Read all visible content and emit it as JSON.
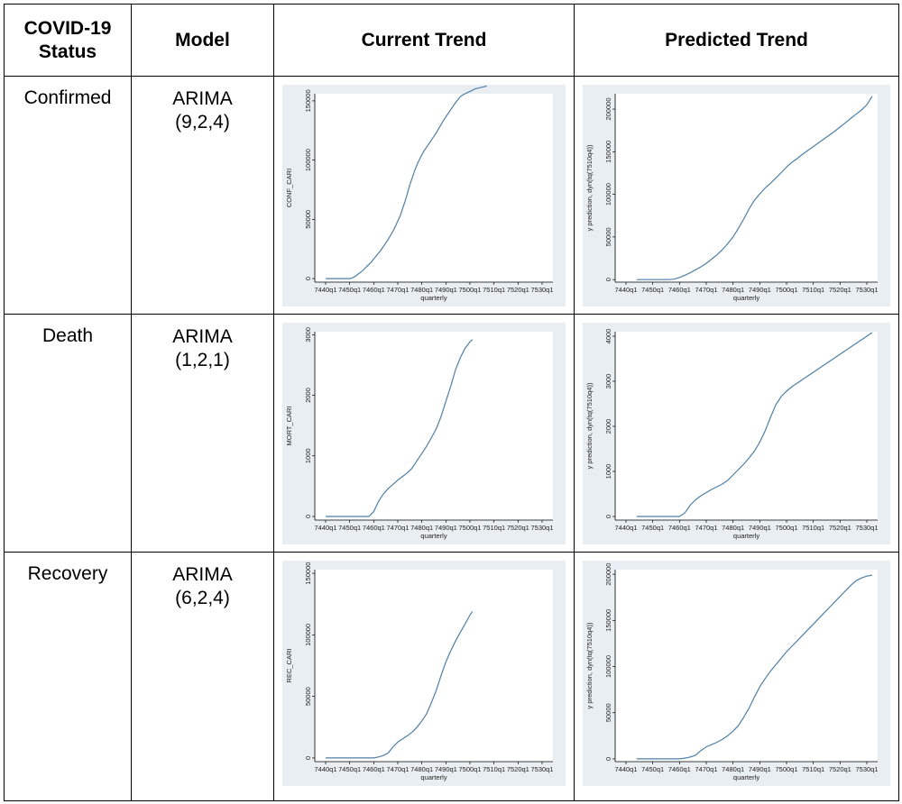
{
  "table": {
    "headers": [
      "COVID-19 Status",
      "Model",
      "Current Trend",
      "Predicted Trend"
    ],
    "header_status_line1": "COVID-19",
    "header_status_line2": "Status",
    "rows": [
      {
        "status": "Confirmed",
        "model_line1": "ARIMA",
        "model_line2": "(9,2,4)"
      },
      {
        "status": "Death",
        "model_line1": "ARIMA",
        "model_line2": "(1,2,1)"
      },
      {
        "status": "Recovery",
        "model_line1": "ARIMA",
        "model_line2": "(6,2,4)"
      }
    ]
  },
  "colors": {
    "plot_background": "#e8eef2",
    "line": "#4f7fa6",
    "axis": "#000000"
  },
  "chart_data": [
    {
      "type": "line",
      "ylabel": "CONF_CARI",
      "xlabel": "quarterly",
      "categories": [
        "7440q1",
        "7450q1",
        "7460q1",
        "7470q1",
        "7480q1",
        "7490q1",
        "7500q1",
        "7510q1",
        "7520q1",
        "7530q1"
      ],
      "yticks": [
        0,
        50000,
        100000,
        150000
      ],
      "ylim": [
        -3000,
        156000
      ],
      "x": [
        0,
        0.3,
        0.55,
        0.65,
        0.75,
        0.85,
        0.95,
        1.0,
        1.1,
        1.2,
        1.3,
        1.4,
        1.5,
        1.6,
        1.7,
        1.8,
        1.9,
        2.0,
        2.1,
        2.2,
        2.3,
        2.4,
        2.5,
        2.6,
        2.7,
        2.8,
        2.9,
        3.0,
        3.1,
        3.2,
        3.3,
        3.4,
        3.5,
        3.6,
        3.7,
        3.8,
        3.9,
        4.0,
        4.1,
        4.2,
        4.3,
        4.4,
        4.5,
        4.6,
        4.7,
        4.8,
        4.9,
        5.0,
        5.1,
        5.2,
        5.3,
        5.4,
        5.5,
        5.6,
        5.7,
        5.8,
        5.9,
        6.0,
        6.1,
        6.2,
        6.3,
        6.4,
        6.5,
        6.6,
        6.7
      ],
      "y": [
        0,
        0,
        0,
        0,
        0,
        0,
        0,
        0,
        500,
        1500,
        3000,
        4500,
        6000,
        8000,
        10000,
        12000,
        14000,
        16500,
        19000,
        21500,
        24000,
        27000,
        30000,
        33000,
        36500,
        40000,
        44000,
        48500,
        53000,
        59000,
        65000,
        72000,
        79000,
        85000,
        91000,
        96000,
        100500,
        104500,
        108000,
        111000,
        114000,
        117000,
        120000,
        123000,
        126500,
        130000,
        133500,
        136500,
        139500,
        142500,
        145500,
        148500,
        151000,
        153500,
        155000,
        156000,
        157000,
        158000,
        159000,
        160000,
        160500,
        161000,
        161500,
        162000,
        162500
      ]
    },
    {
      "type": "line",
      "ylabel": "y prediction, dyn(tq(7510q4))",
      "xlabel": "quarterly",
      "categories": [
        "7440q1",
        "7450q1",
        "7460q1",
        "7470q1",
        "7480q1",
        "7490q1",
        "7500q1",
        "7510q1",
        "7520q1",
        "7530q1"
      ],
      "yticks": [
        0,
        50000,
        100000,
        150000,
        200000
      ],
      "ylim": [
        -3000,
        218000
      ],
      "x": [
        0.4,
        0.8,
        1.2,
        1.4,
        1.6,
        1.8,
        2.0,
        2.2,
        2.4,
        2.6,
        2.8,
        3.0,
        3.2,
        3.4,
        3.6,
        3.8,
        4.0,
        4.2,
        4.4,
        4.6,
        4.8,
        5.0,
        5.2,
        5.4,
        5.6,
        5.8,
        6.0,
        6.2,
        6.4,
        6.6,
        6.8,
        7.0,
        7.2,
        7.4,
        7.6,
        7.8,
        8.0,
        8.2,
        8.4,
        8.6,
        8.8,
        9.0,
        9.2
      ],
      "y": [
        0,
        0,
        0,
        0,
        0,
        500,
        2500,
        5000,
        8000,
        11500,
        15000,
        19000,
        24000,
        29000,
        35000,
        42000,
        50000,
        60000,
        71000,
        83000,
        93000,
        100500,
        107500,
        113000,
        119000,
        125500,
        132000,
        137500,
        142000,
        147000,
        151500,
        156000,
        160500,
        165000,
        169500,
        174000,
        179000,
        184000,
        189000,
        194000,
        199000,
        205000,
        215000
      ]
    },
    {
      "type": "line",
      "ylabel": "MORT_CARI",
      "xlabel": "quarterly",
      "categories": [
        "7440q1",
        "7450q1",
        "7460q1",
        "7470q1",
        "7480q1",
        "7490q1",
        "7500q1",
        "7510q1",
        "7520q1",
        "7530q1"
      ],
      "yticks": [
        0,
        1000,
        2000,
        3000
      ],
      "ylim": [
        -60,
        3050
      ],
      "x": [
        0,
        0.5,
        1.0,
        1.5,
        1.8,
        2.0,
        2.2,
        2.4,
        2.6,
        2.8,
        3.0,
        3.2,
        3.4,
        3.6,
        3.8,
        4.0,
        4.2,
        4.4,
        4.6,
        4.8,
        5.0,
        5.2,
        5.4,
        5.6,
        5.8,
        6.0,
        6.1
      ],
      "y": [
        0,
        0,
        0,
        0,
        0,
        80,
        250,
        370,
        460,
        530,
        600,
        660,
        720,
        800,
        920,
        1040,
        1160,
        1300,
        1450,
        1650,
        1900,
        2150,
        2420,
        2620,
        2780,
        2880,
        2920
      ]
    },
    {
      "type": "line",
      "ylabel": "y prediction, dyn(tq(7510q4))",
      "xlabel": "quarterly",
      "categories": [
        "7440q1",
        "7450q1",
        "7460q1",
        "7470q1",
        "7480q1",
        "7490q1",
        "7500q1",
        "7510q1",
        "7520q1",
        "7530q1"
      ],
      "yticks": [
        0,
        1000,
        2000,
        3000,
        4000
      ],
      "ylim": [
        -80,
        4100
      ],
      "x": [
        0.4,
        0.8,
        1.2,
        1.6,
        2.0,
        2.2,
        2.4,
        2.6,
        2.8,
        3.0,
        3.2,
        3.4,
        3.6,
        3.8,
        4.0,
        4.2,
        4.4,
        4.6,
        4.8,
        5.0,
        5.2,
        5.4,
        5.6,
        5.8,
        6.0,
        6.2,
        6.4,
        6.6,
        6.8,
        7.0,
        7.2,
        7.4,
        7.6,
        7.8,
        8.0,
        8.2,
        8.4,
        8.6,
        8.8,
        9.0,
        9.2
      ],
      "y": [
        0,
        0,
        0,
        0,
        0,
        80,
        250,
        370,
        460,
        530,
        600,
        660,
        720,
        800,
        920,
        1040,
        1160,
        1300,
        1450,
        1650,
        1900,
        2200,
        2480,
        2660,
        2780,
        2880,
        2960,
        3040,
        3120,
        3200,
        3280,
        3360,
        3440,
        3520,
        3600,
        3680,
        3760,
        3840,
        3920,
        4000,
        4080
      ]
    },
    {
      "type": "line",
      "ylabel": "REC_CARI",
      "xlabel": "quarterly",
      "categories": [
        "7440q1",
        "7450q1",
        "7460q1",
        "7470q1",
        "7480q1",
        "7490q1",
        "7500q1",
        "7510q1",
        "7520q1",
        "7530q1"
      ],
      "yticks": [
        0,
        50000,
        100000,
        150000
      ],
      "ylim": [
        -3000,
        153000
      ],
      "x": [
        0,
        0.5,
        1.0,
        1.5,
        2.0,
        2.2,
        2.4,
        2.6,
        2.8,
        3.0,
        3.2,
        3.4,
        3.6,
        3.8,
        4.0,
        4.2,
        4.4,
        4.6,
        4.8,
        5.0,
        5.2,
        5.4,
        5.6,
        5.8,
        6.0,
        6.1
      ],
      "y": [
        0,
        0,
        0,
        0,
        0,
        800,
        2000,
        4000,
        9000,
        13000,
        15500,
        18000,
        21000,
        25000,
        30000,
        36000,
        45000,
        55000,
        67000,
        78000,
        87000,
        95000,
        102000,
        109000,
        116000,
        119000
      ]
    },
    {
      "type": "line",
      "ylabel": "y prediction, dyn(tq(7510q4))",
      "xlabel": "quarterly",
      "categories": [
        "7440q1",
        "7450q1",
        "7460q1",
        "7470q1",
        "7480q1",
        "7490q1",
        "7500q1",
        "7510q1",
        "7520q1",
        "7530q1"
      ],
      "yticks": [
        0,
        50000,
        100000,
        150000,
        200000
      ],
      "ylim": [
        -3000,
        205000
      ],
      "x": [
        0.4,
        0.8,
        1.2,
        1.6,
        2.0,
        2.2,
        2.4,
        2.6,
        2.8,
        3.0,
        3.2,
        3.4,
        3.6,
        3.8,
        4.0,
        4.2,
        4.4,
        4.6,
        4.8,
        5.0,
        5.2,
        5.4,
        5.6,
        5.8,
        6.0,
        6.2,
        6.4,
        6.6,
        6.8,
        7.0,
        7.2,
        7.4,
        7.6,
        7.8,
        8.0,
        8.2,
        8.4,
        8.6,
        8.8,
        9.0,
        9.2
      ],
      "y": [
        0,
        0,
        0,
        0,
        0,
        800,
        2000,
        4000,
        9000,
        13000,
        15500,
        18000,
        21000,
        25000,
        30000,
        36000,
        45000,
        55000,
        67000,
        78000,
        87000,
        95000,
        102000,
        109000,
        116000,
        122000,
        128000,
        134000,
        140000,
        146000,
        152000,
        158000,
        164000,
        170000,
        176000,
        182000,
        188000,
        193000,
        196000,
        198000,
        199000
      ]
    }
  ]
}
